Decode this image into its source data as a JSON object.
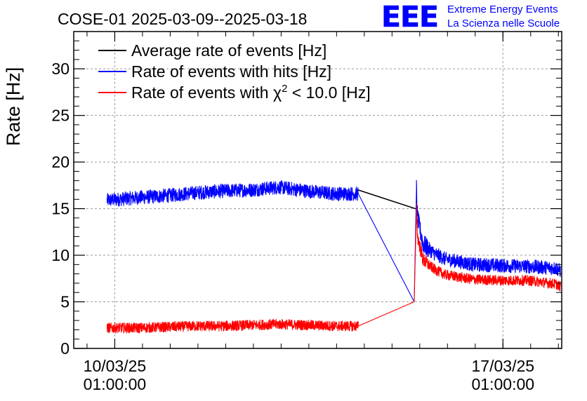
{
  "chart_data": {
    "type": "line",
    "title": "COSE-01 2025-03-09--2025-03-18",
    "xlabel": "",
    "ylabel": "Rate [Hz]",
    "ylim": [
      0,
      34
    ],
    "yticks": [
      0,
      5,
      10,
      15,
      20,
      25,
      30
    ],
    "ytick_labels": [
      "0",
      "5",
      "10",
      "15",
      "20",
      "25",
      "30"
    ],
    "x_unit": "days since 2025-03-09 00:00",
    "xlim": [
      0.3,
      9.1
    ],
    "xticks": [
      1.04,
      8.04
    ],
    "xtick_labels": [
      {
        "date": "10/03/25",
        "time": "01:00:00"
      },
      {
        "date": "17/03/25",
        "time": "01:00:00"
      }
    ],
    "grid": true,
    "legend_position": "top-left",
    "series": [
      {
        "name": "Average rate of events [Hz]",
        "color": "#000000",
        "x": [
          5.43,
          6.46,
          6.49
        ],
        "y": [
          17.0,
          15.0,
          15.0
        ]
      },
      {
        "name": "Rate of events with hits [Hz]",
        "color": "#0000ff",
        "noise": 0.75,
        "x": [
          0.9,
          1.5,
          2.0,
          2.5,
          3.0,
          3.5,
          4.0,
          4.5,
          5.0,
          5.43,
          6.44,
          6.48,
          6.5,
          6.6,
          6.8,
          7.0,
          7.5,
          8.0,
          8.5,
          9.0,
          9.08
        ],
        "y": [
          15.9,
          16.2,
          16.4,
          16.7,
          16.9,
          17.0,
          17.3,
          16.9,
          16.6,
          16.6,
          5.0,
          17.2,
          14.0,
          11.2,
          10.2,
          9.6,
          9.0,
          8.9,
          8.8,
          8.6,
          8.3
        ]
      },
      {
        "name": "Rate of events with χ² < 10.0 [Hz]",
        "color": "#ff0000",
        "noise": 0.55,
        "x": [
          0.9,
          1.5,
          2.0,
          2.5,
          3.0,
          3.5,
          4.0,
          4.5,
          5.0,
          5.43,
          6.44,
          6.48,
          6.5,
          6.6,
          6.8,
          7.0,
          7.5,
          8.0,
          8.5,
          9.0,
          9.08
        ],
        "y": [
          2.2,
          2.2,
          2.3,
          2.4,
          2.4,
          2.5,
          2.6,
          2.5,
          2.4,
          2.4,
          5.0,
          15.0,
          12.0,
          9.5,
          8.5,
          7.9,
          7.4,
          7.3,
          7.3,
          6.9,
          6.6
        ]
      }
    ],
    "legend": [
      {
        "prefix": "Average rate of events [Hz]",
        "sup": "",
        "suffix": "",
        "color": "#000000"
      },
      {
        "prefix": "Rate of events with hits [Hz]",
        "sup": "",
        "suffix": "",
        "color": "#0000ff"
      },
      {
        "prefix": "Rate of events with χ",
        "sup": "2",
        "suffix": " < 10.0 [Hz]",
        "color": "#ff0000"
      }
    ]
  },
  "logo": {
    "text": "EEE",
    "line1": "Extreme Energy Events",
    "line2": "La Scienza nelle Scuole",
    "color": "#0000ff"
  }
}
